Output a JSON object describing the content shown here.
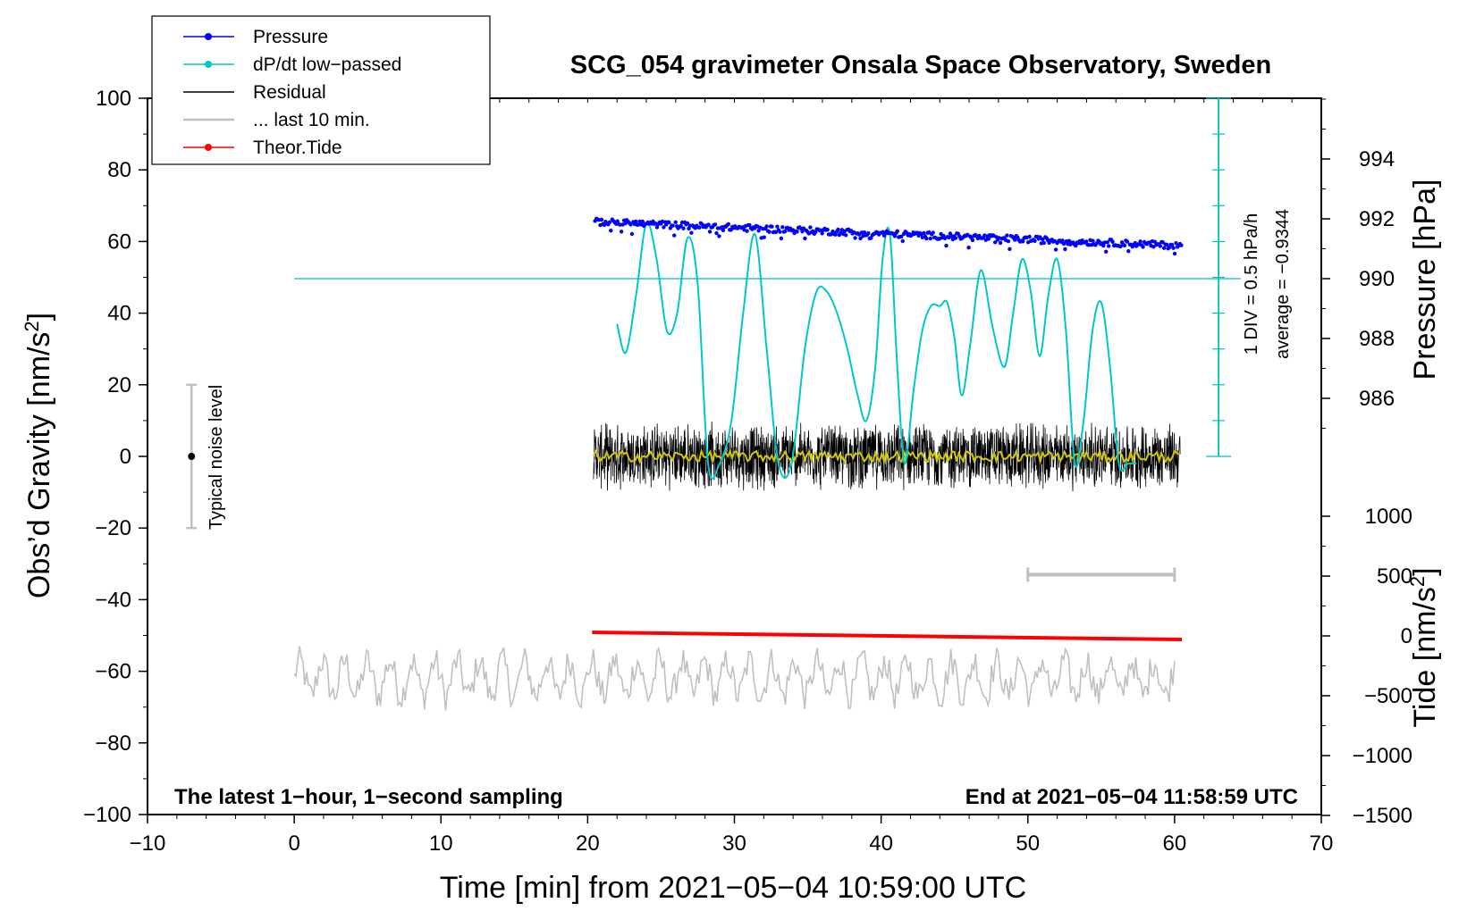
{
  "chart_data": {
    "type": "line",
    "title": "SCG_054 gravimeter Onsala Space Observatory, Sweden",
    "xlabel": "Time [min] from 2021−05−04 10:59:00 UTC",
    "ylabel_left": "Obs’d Gravity [nm/s",
    "ylabel_left_sup": "2",
    "ylabel_left_end": "]",
    "ylabel_right_pressure": "Pressure [hPa]",
    "ylabel_right_tide": "Tide [nm/s",
    "ylabel_right_tide_sup": "2",
    "ylabel_right_tide_end": "]",
    "xlim": [
      -10,
      70
    ],
    "ylim": [
      -100,
      100
    ],
    "x_ticks": [
      -10,
      0,
      10,
      20,
      30,
      40,
      50,
      60,
      70
    ],
    "x_tick_labels": [
      "−10",
      "0",
      "10",
      "20",
      "30",
      "40",
      "50",
      "60",
      "70"
    ],
    "y_ticks": [
      -100,
      -80,
      -60,
      -40,
      -20,
      0,
      20,
      40,
      60,
      80,
      100
    ],
    "y_tick_labels": [
      "−100",
      "−80",
      "−60",
      "−40",
      "−20",
      "0",
      "20",
      "40",
      "60",
      "80",
      "100"
    ],
    "pressure_axis": {
      "range": [
        984,
        996
      ],
      "ticks": [
        986,
        988,
        990,
        992,
        994
      ],
      "tick_labels": [
        "986",
        "988",
        "990",
        "992",
        "994"
      ]
    },
    "tide_axis": {
      "range": [
        -1500,
        1500
      ],
      "ticks": [
        -1500,
        -1000,
        -500,
        0,
        500,
        1000
      ],
      "tick_labels": [
        "−1500",
        "−1000",
        "−500",
        "0",
        "500",
        "1000"
      ]
    },
    "legend": {
      "placement": "top-left",
      "entries": [
        {
          "label": "Pressure",
          "color": "#0000ff",
          "marker": true
        },
        {
          "label": "dP/dt low−passed",
          "color": "#00c8c8",
          "marker": true
        },
        {
          "label": "Residual",
          "color": "#000000",
          "marker": false
        },
        {
          "label": "... last 10 min.",
          "color": "#c0c0c0",
          "marker": false
        },
        {
          "label": "Theor.Tide",
          "color": "#ff0000",
          "marker": true
        }
      ]
    },
    "annotations": {
      "noise_label": "Typical noise level",
      "noise_range": [
        -20,
        20
      ],
      "noise_x": -7,
      "div_label": "1 DIV = 0.5 hPa/h",
      "average_label": "average = −0.9344",
      "left_note": "The latest 1−hour, 1−second sampling",
      "right_note": "End at 2021−05−04 11:58:59 UTC",
      "dpdt_zero_level_hpa": 990,
      "dpdt_scale_x": 63,
      "scale_bar_x": [
        50,
        60
      ],
      "scale_bar_y": -33
    },
    "series": [
      {
        "name": "Pressure",
        "color": "#0000ff",
        "units": "hPa",
        "x_start": 20.5,
        "x_end": 60.5,
        "start": 991.9,
        "end": 991.1
      },
      {
        "name": "dP/dt low-passed",
        "color": "#00c8c8",
        "units": "nm/s2 scale",
        "x": [
          22,
          22.6,
          23.3,
          24,
          24.7,
          25.4,
          26.1,
          26.8,
          27.5,
          28.2,
          29,
          29.8,
          30.6,
          31.4,
          32.2,
          33,
          33.9,
          34.8,
          35.6,
          36.3,
          37,
          37.7,
          38.4,
          39,
          39.6,
          40.1,
          40.6,
          41.1,
          41.6,
          42.2,
          42.8,
          43.4,
          44,
          44.5,
          45,
          45.5,
          46.1,
          46.8,
          47.6,
          48.4,
          49,
          49.6,
          50.2,
          50.8,
          51.4,
          52,
          52.6,
          53.2,
          53.8,
          54.4,
          55,
          55.6,
          56.2,
          56.8,
          57.4
        ],
        "y": [
          37,
          29,
          45,
          65,
          55,
          35,
          40,
          61,
          48,
          -2,
          -2,
          10,
          40,
          62,
          30,
          -2,
          -2,
          30,
          46,
          46,
          40,
          30,
          17,
          10,
          25,
          55,
          62,
          25,
          -2,
          18,
          35,
          42,
          42,
          43,
          33,
          17,
          32,
          52,
          36,
          25,
          40,
          55,
          46,
          28,
          45,
          55,
          35,
          -2,
          10,
          35,
          43,
          25,
          -2,
          -2,
          -2
        ]
      },
      {
        "name": "Residual",
        "color": "#000000",
        "x_start": 20.4,
        "x_end": 60.4,
        "mean": 0,
        "amplitude": 10
      },
      {
        "name": "Residual smoothed",
        "color": "#d2c800",
        "x_start": 20.4,
        "x_end": 60.4,
        "mean": 0,
        "amplitude": 1.5
      },
      {
        "name": "... last 10 min.",
        "color": "#c0c0c0",
        "x_start": 0,
        "x_end": 60,
        "mean": -62,
        "amplitude": 7
      },
      {
        "name": "Theor.Tide",
        "color": "#ff0000",
        "units": "nm/s2",
        "x": [
          20.3,
          60.5
        ],
        "y": [
          30,
          -30
        ]
      }
    ]
  }
}
